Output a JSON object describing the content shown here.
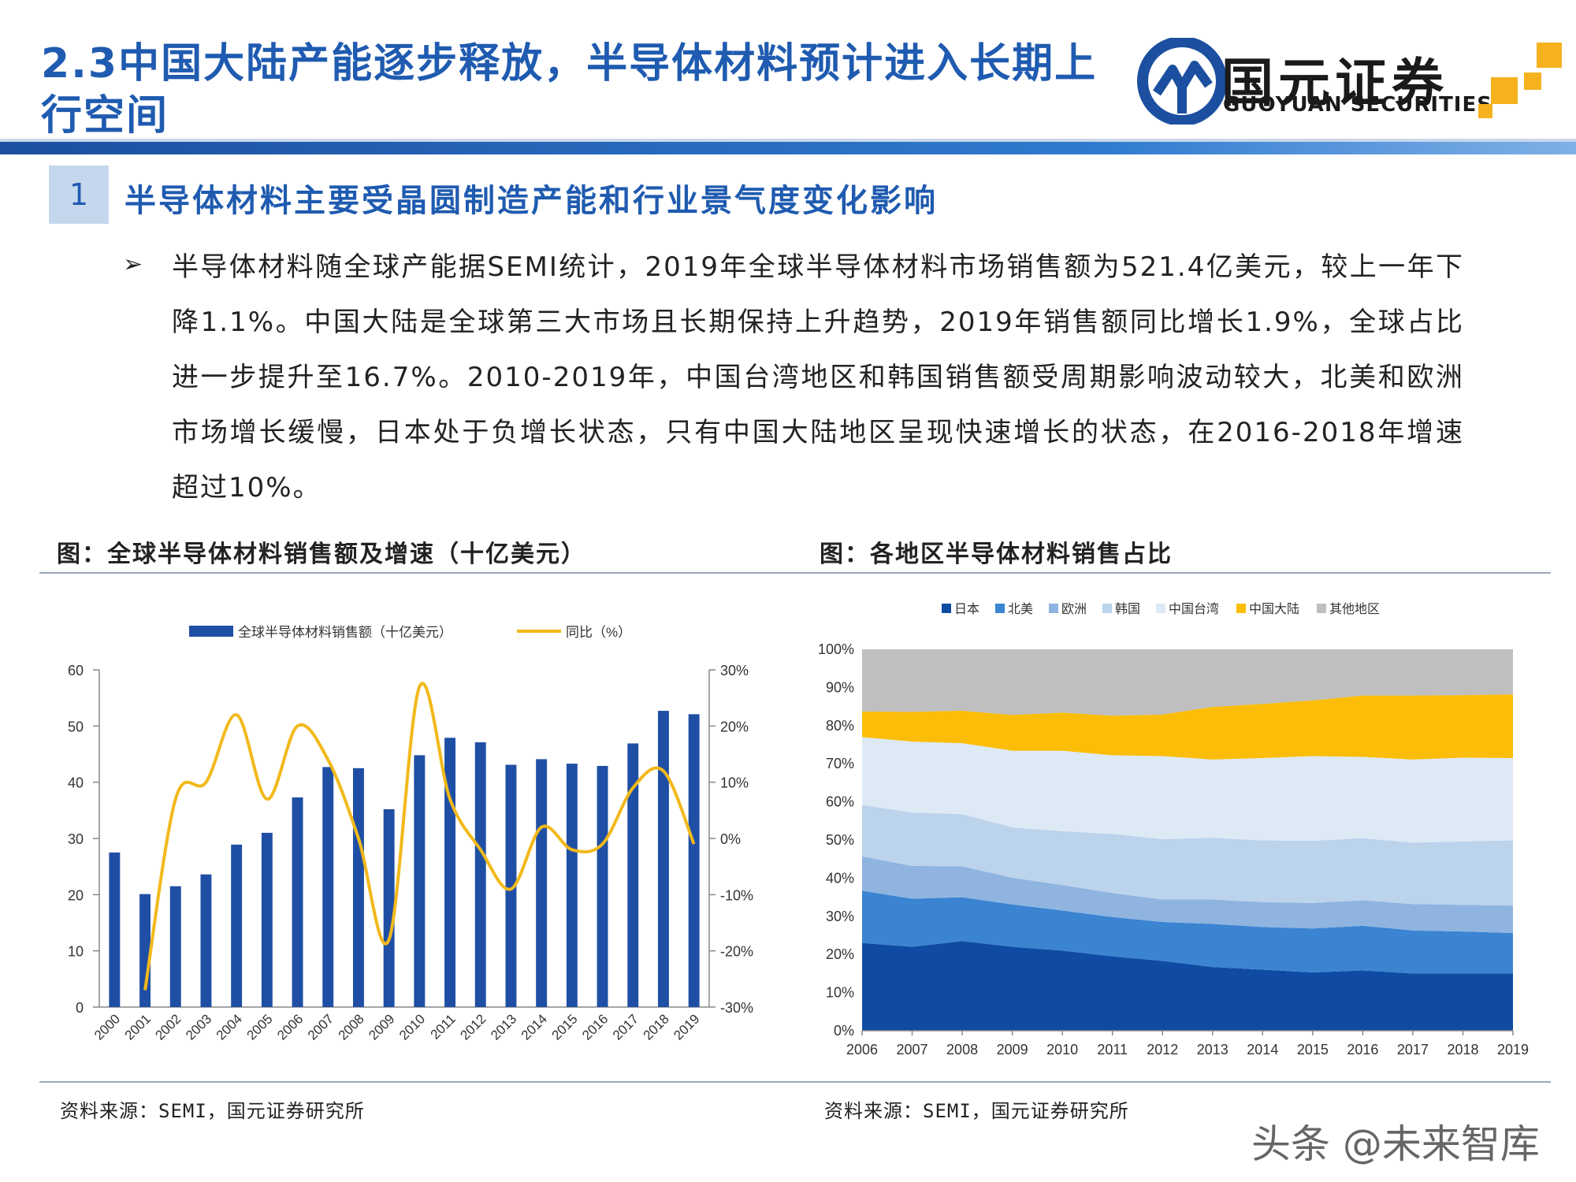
{
  "header": {
    "title": "2.3中国大陆产能逐步释放，半导体材料预计进入长期上行空间",
    "logo_cn": "国元证券",
    "logo_en": "GUOYUAN SECURITIES"
  },
  "section": {
    "number": "1",
    "heading": "半导体材料主要受晶圆制造产能和行业景气度变化影响"
  },
  "body": {
    "bullet": "➢",
    "text": "半导体材料随全球产能据SEMI统计，2019年全球半导体材料市场销售额为521.4亿美元，较上一年下降1.1%。中国大陆是全球第三大市场且长期保持上升趋势，2019年销售额同比增长1.9%，全球占比进一步提升至16.7%。2010-2019年，中国台湾地区和韩国销售额受周期影响波动较大，北美和欧洲市场增长缓慢，日本处于负增长状态，只有中国大陆地区呈现快速增长的状态，在2016-2018年增速超过10%。"
  },
  "figures": {
    "left_title": "图：全球半导体材料销售额及增速（十亿美元）",
    "right_title": "图：各地区半导体材料销售占比",
    "left_source": "资料来源：SEMI，国元证券研究所",
    "right_source": "资料来源：SEMI，国元证券研究所"
  },
  "watermark": "头条 @未来智库",
  "chart_data": [
    {
      "type": "bar",
      "categories": [
        "2000",
        "2001",
        "2002",
        "2003",
        "2004",
        "2005",
        "2006",
        "2007",
        "2008",
        "2009",
        "2010",
        "2011",
        "2012",
        "2013",
        "2014",
        "2015",
        "2016",
        "2017",
        "2018",
        "2019"
      ],
      "series": [
        {
          "name": "全球半导体材料销售额（十亿美元）",
          "type": "bar",
          "axis": "left",
          "color": "#1f4fa5",
          "values": [
            27.5,
            20.1,
            21.5,
            23.6,
            28.9,
            31.0,
            37.3,
            42.7,
            42.5,
            35.2,
            44.8,
            47.9,
            47.1,
            43.1,
            44.1,
            43.3,
            42.9,
            46.9,
            52.7,
            52.1
          ]
        },
        {
          "name": "同比（%）",
          "type": "line",
          "axis": "right",
          "color": "#f2b91b",
          "values": [
            null,
            -27,
            7,
            10,
            22,
            7,
            20,
            14,
            0,
            -18,
            27,
            7,
            -2,
            -9,
            2,
            -2,
            -1,
            9,
            12,
            -1
          ]
        }
      ],
      "ylim_left": [
        0,
        60
      ],
      "yticks_left": [
        "0",
        "10",
        "20",
        "30",
        "40",
        "50",
        "60"
      ],
      "ylim_right": [
        -30,
        30
      ],
      "yticks_right": [
        "-30%",
        "-20%",
        "-10%",
        "0%",
        "10%",
        "20%",
        "30%"
      ],
      "legend_position": "top"
    },
    {
      "type": "area",
      "stacked": true,
      "x": [
        "2006",
        "2007",
        "2008",
        "2009",
        "2010",
        "2011",
        "2012",
        "2013",
        "2014",
        "2015",
        "2016",
        "2017",
        "2018",
        "2019"
      ],
      "ylim": [
        0,
        100
      ],
      "yticks": [
        "0%",
        "10%",
        "20%",
        "30%",
        "40%",
        "50%",
        "60%",
        "70%",
        "80%",
        "90%",
        "100%"
      ],
      "legend_position": "top",
      "series": [
        {
          "name": "日本",
          "color": "#0f4ba3",
          "values": [
            23,
            22,
            23.5,
            22,
            21,
            19.5,
            18.3,
            16.7,
            16,
            15.3,
            15.8,
            15,
            15,
            15
          ]
        },
        {
          "name": "北美",
          "color": "#3a84d1",
          "values": [
            13.7,
            12.6,
            11.5,
            11.1,
            10.5,
            10.3,
            10.2,
            11.3,
            11.2,
            11.5,
            11.7,
            11.3,
            11,
            10.6
          ]
        },
        {
          "name": "欧洲",
          "color": "#8fb4e0",
          "values": [
            9,
            8.6,
            8.1,
            7,
            6.7,
            6.3,
            5.9,
            6.4,
            6.5,
            6.7,
            6.7,
            6.9,
            7,
            7.2
          ]
        },
        {
          "name": "韩国",
          "color": "#bcd3ec",
          "values": [
            13.5,
            14,
            13.7,
            13.2,
            14.1,
            15.5,
            15.8,
            16.2,
            16.2,
            16.3,
            16.3,
            16.1,
            16.6,
            17.1
          ]
        },
        {
          "name": "中国台湾",
          "color": "#dde9f5",
          "values": [
            17.8,
            18.6,
            18.6,
            20.1,
            21.1,
            20.6,
            21.8,
            20.5,
            21.6,
            22.2,
            21.3,
            21.8,
            22,
            21.6
          ]
        },
        {
          "name": "中国大陆",
          "color": "#fbbd08",
          "values": [
            6.7,
            7.8,
            8.5,
            9.4,
            10,
            10.4,
            10.9,
            13.8,
            14.2,
            14.6,
            16.1,
            16.8,
            16.4,
            16.7
          ]
        },
        {
          "name": "其他地区",
          "color": "#bfbfbf",
          "values": [
            16.3,
            16.4,
            16.1,
            17.2,
            16.6,
            17.4,
            17.1,
            15.1,
            14.3,
            13.4,
            12.1,
            12.1,
            12,
            11.8
          ]
        }
      ]
    }
  ]
}
